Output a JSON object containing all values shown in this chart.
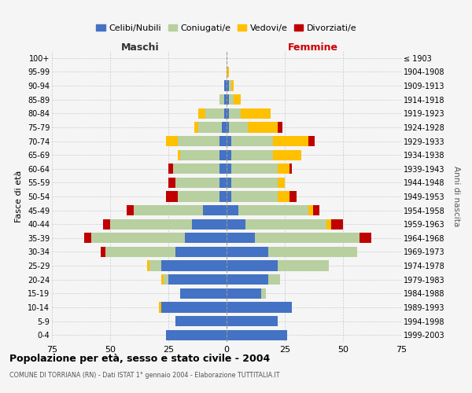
{
  "age_groups": [
    "0-4",
    "5-9",
    "10-14",
    "15-19",
    "20-24",
    "25-29",
    "30-34",
    "35-39",
    "40-44",
    "45-49",
    "50-54",
    "55-59",
    "60-64",
    "65-69",
    "70-74",
    "75-79",
    "80-84",
    "85-89",
    "90-94",
    "95-99",
    "100+"
  ],
  "birth_years": [
    "1999-2003",
    "1994-1998",
    "1989-1993",
    "1984-1988",
    "1979-1983",
    "1974-1978",
    "1969-1973",
    "1964-1968",
    "1959-1963",
    "1954-1958",
    "1949-1953",
    "1944-1948",
    "1939-1943",
    "1934-1938",
    "1929-1933",
    "1924-1928",
    "1919-1923",
    "1914-1918",
    "1909-1913",
    "1904-1908",
    "≤ 1903"
  ],
  "maschi": {
    "celibi": [
      26,
      22,
      28,
      20,
      25,
      28,
      22,
      18,
      15,
      10,
      3,
      3,
      3,
      3,
      3,
      2,
      1,
      1,
      1,
      0,
      0
    ],
    "coniugati": [
      0,
      0,
      0,
      0,
      2,
      5,
      30,
      40,
      35,
      30,
      18,
      19,
      20,
      17,
      18,
      10,
      8,
      2,
      0,
      0,
      0
    ],
    "vedovi": [
      0,
      0,
      1,
      0,
      1,
      1,
      0,
      0,
      0,
      0,
      0,
      0,
      0,
      1,
      5,
      2,
      3,
      0,
      0,
      0,
      0
    ],
    "divorziati": [
      0,
      0,
      0,
      0,
      0,
      0,
      2,
      3,
      3,
      3,
      5,
      3,
      2,
      0,
      0,
      0,
      0,
      0,
      0,
      0,
      0
    ]
  },
  "femmine": {
    "nubili": [
      26,
      22,
      28,
      15,
      18,
      22,
      18,
      12,
      8,
      5,
      2,
      2,
      2,
      2,
      2,
      1,
      1,
      1,
      1,
      0,
      0
    ],
    "coniugate": [
      0,
      0,
      0,
      2,
      5,
      22,
      38,
      45,
      35,
      30,
      20,
      20,
      20,
      18,
      18,
      8,
      5,
      2,
      1,
      0,
      0
    ],
    "vedove": [
      0,
      0,
      0,
      0,
      0,
      0,
      0,
      0,
      2,
      2,
      5,
      3,
      5,
      12,
      15,
      13,
      13,
      3,
      1,
      1,
      0
    ],
    "divorziate": [
      0,
      0,
      0,
      0,
      0,
      0,
      0,
      5,
      5,
      3,
      3,
      0,
      1,
      0,
      3,
      2,
      0,
      0,
      0,
      0,
      0
    ]
  },
  "color_celibi": "#4472c4",
  "color_coniugati": "#b8cfa0",
  "color_vedovi": "#ffc000",
  "color_divorziati": "#c00000",
  "xlim": 75,
  "title": "Popolazione per età, sesso e stato civile - 2004",
  "subtitle": "COMUNE DI TORRIANA (RN) - Dati ISTAT 1° gennaio 2004 - Elaborazione TUTTITALIA.IT",
  "ylabel_left": "Fasce di età",
  "ylabel_right": "Anni di nascita",
  "xlabel_left": "Maschi",
  "xlabel_right": "Femmine",
  "bg_color": "#f5f5f5",
  "grid_color": "#cccccc",
  "bar_height": 0.75
}
